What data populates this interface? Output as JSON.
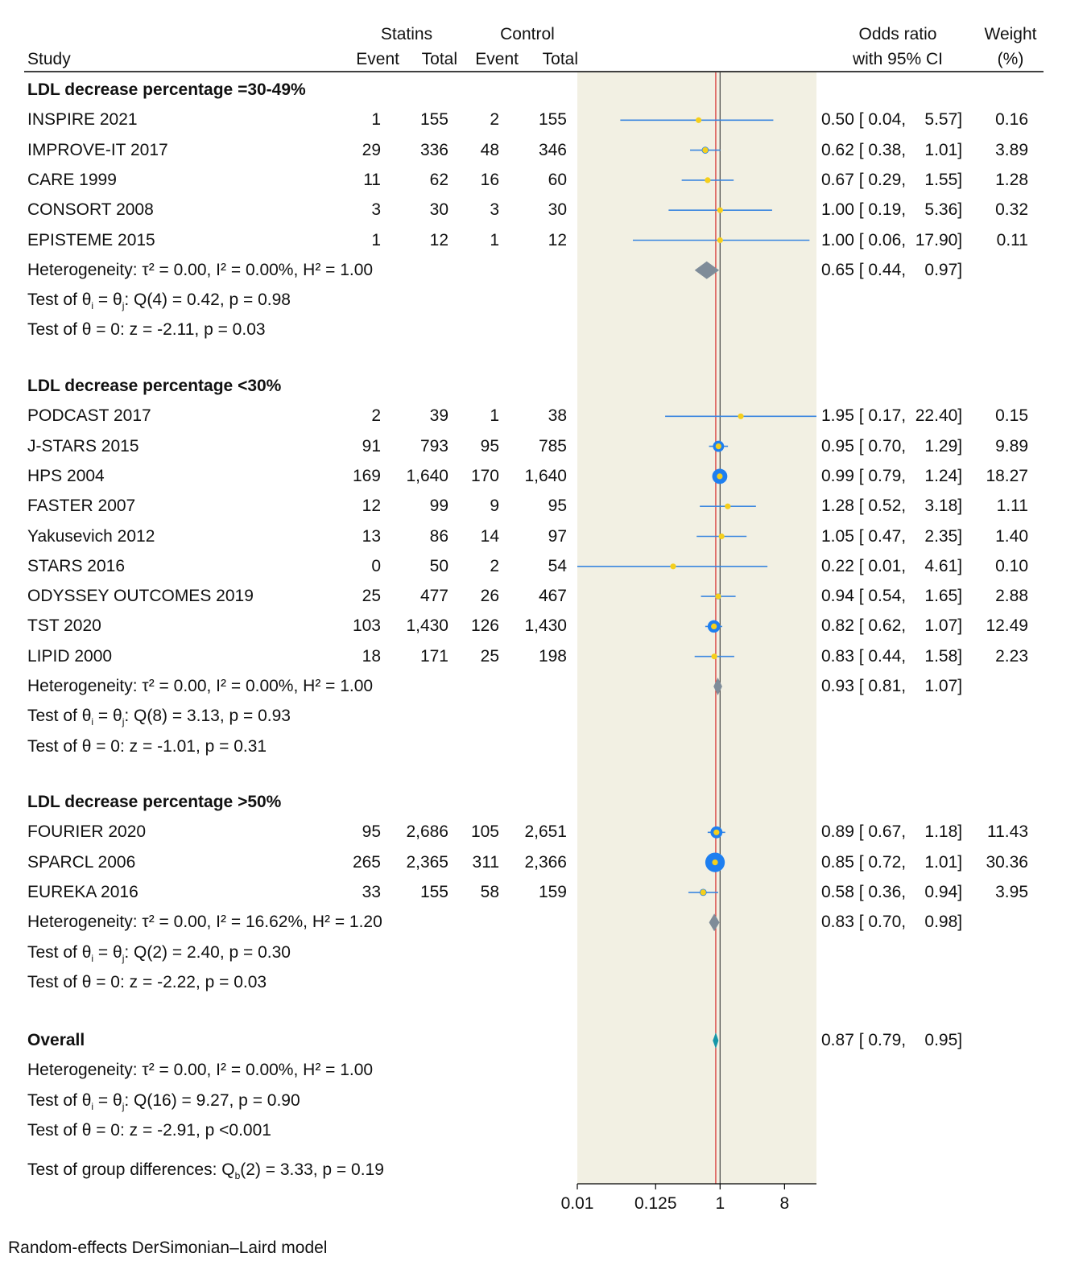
{
  "header": {
    "study": "Study",
    "statins": "Statins",
    "control": "Control",
    "event": "Event",
    "total": "Total",
    "or_line1": "Odds ratio",
    "or_line2": "with 95% CI",
    "weight_line1": "Weight",
    "weight_line2": "(%)"
  },
  "footer_note": "Random-effects DerSimonian–Laird model",
  "group_diff": {
    "pre": "Test of group differences: Q",
    "sub": "b",
    "post": "(2) = 3.33, p = 0.19"
  },
  "colors": {
    "panel": "#f2f0e3",
    "ci_line": "#3a86e0",
    "marker_ring": "#1e7ff0",
    "marker_dot": "#f5cf1c",
    "diamond": "#7f8c99",
    "overall_diamond": "#1596a8",
    "null_line": "#444444",
    "overall_line": "#d62b2b"
  },
  "chart_data": {
    "type": "forest",
    "title": "",
    "xlabel": "",
    "scale": "log2",
    "xlim": [
      0.01,
      22.4
    ],
    "x_ticks": [
      {
        "value": 0.01,
        "label": "0.01"
      },
      {
        "value": 0.125,
        "label": "0.125"
      },
      {
        "value": 1,
        "label": "1"
      },
      {
        "value": 8,
        "label": "8"
      }
    ],
    "null_value": 1,
    "overall_estimate": 0.87,
    "subgroups": [
      {
        "name": "LDL decrease percentage =30-49%",
        "studies": [
          {
            "name": "INSPIRE 2021",
            "s_event": "1",
            "s_total": "155",
            "c_event": "2",
            "c_total": "155",
            "or": 0.5,
            "lo": 0.04,
            "hi": 5.57,
            "ci_text": "0.50 [ 0.04,    5.57]",
            "weight": 0.16,
            "weight_text": "0.16"
          },
          {
            "name": "IMPROVE-IT 2017",
            "s_event": "29",
            "s_total": "336",
            "c_event": "48",
            "c_total": "346",
            "or": 0.62,
            "lo": 0.38,
            "hi": 1.01,
            "ci_text": "0.62 [ 0.38,    1.01]",
            "weight": 3.89,
            "weight_text": "3.89"
          },
          {
            "name": "CARE 1999",
            "s_event": "11",
            "s_total": "62",
            "c_event": "16",
            "c_total": "60",
            "or": 0.67,
            "lo": 0.29,
            "hi": 1.55,
            "ci_text": "0.67 [ 0.29,    1.55]",
            "weight": 1.28,
            "weight_text": "1.28"
          },
          {
            "name": "CONSORT 2008",
            "s_event": "3",
            "s_total": "30",
            "c_event": "3",
            "c_total": "30",
            "or": 1.0,
            "lo": 0.19,
            "hi": 5.36,
            "ci_text": "1.00 [ 0.19,    5.36]",
            "weight": 0.32,
            "weight_text": "0.32"
          },
          {
            "name": "EPISTEME 2015",
            "s_event": "1",
            "s_total": "12",
            "c_event": "1",
            "c_total": "12",
            "or": 1.0,
            "lo": 0.06,
            "hi": 17.9,
            "ci_text": "1.00 [ 0.06,  17.90]",
            "weight": 0.11,
            "weight_text": "0.11"
          }
        ],
        "pooled": {
          "or": 0.65,
          "lo": 0.44,
          "hi": 0.97,
          "ci_text": "0.65 [ 0.44,    0.97]"
        },
        "heterogeneity": "Heterogeneity: τ² = 0.00, I² = 0.00%, H² = 1.00",
        "q_test": {
          "pre": "Test of θ",
          "sub1": "i",
          "mid": " = θ",
          "sub2": "j",
          "post": ": Q(4) = 0.42, p = 0.98"
        },
        "z_test": "Test of θ = 0: z = -2.11, p = 0.03"
      },
      {
        "name": "LDL decrease percentage <30%",
        "studies": [
          {
            "name": "PODCAST 2017",
            "s_event": "2",
            "s_total": "39",
            "c_event": "1",
            "c_total": "38",
            "or": 1.95,
            "lo": 0.17,
            "hi": 22.4,
            "ci_text": "1.95 [ 0.17,  22.40]",
            "weight": 0.15,
            "weight_text": "0.15"
          },
          {
            "name": "J-STARS 2015",
            "s_event": "91",
            "s_total": "793",
            "c_event": "95",
            "c_total": "785",
            "or": 0.95,
            "lo": 0.7,
            "hi": 1.29,
            "ci_text": "0.95 [ 0.70,    1.29]",
            "weight": 9.89,
            "weight_text": "9.89"
          },
          {
            "name": "HPS 2004",
            "s_event": "169",
            "s_total": "1,640",
            "c_event": "170",
            "c_total": "1,640",
            "or": 0.99,
            "lo": 0.79,
            "hi": 1.24,
            "ci_text": "0.99 [ 0.79,    1.24]",
            "weight": 18.27,
            "weight_text": "18.27"
          },
          {
            "name": "FASTER 2007",
            "s_event": "12",
            "s_total": "99",
            "c_event": "9",
            "c_total": "95",
            "or": 1.28,
            "lo": 0.52,
            "hi": 3.18,
            "ci_text": "1.28 [ 0.52,    3.18]",
            "weight": 1.11,
            "weight_text": "1.11"
          },
          {
            "name": "Yakusevich 2012",
            "s_event": "13",
            "s_total": "86",
            "c_event": "14",
            "c_total": "97",
            "or": 1.05,
            "lo": 0.47,
            "hi": 2.35,
            "ci_text": "1.05 [ 0.47,    2.35]",
            "weight": 1.4,
            "weight_text": "1.40"
          },
          {
            "name": "STARS 2016",
            "s_event": "0",
            "s_total": "50",
            "c_event": "2",
            "c_total": "54",
            "or": 0.22,
            "lo": 0.01,
            "hi": 4.61,
            "ci_text": "0.22 [ 0.01,    4.61]",
            "weight": 0.1,
            "weight_text": "0.10"
          },
          {
            "name": "ODYSSEY OUTCOMES 2019",
            "s_event": "25",
            "s_total": "477",
            "c_event": "26",
            "c_total": "467",
            "or": 0.94,
            "lo": 0.54,
            "hi": 1.65,
            "ci_text": "0.94 [ 0.54,    1.65]",
            "weight": 2.88,
            "weight_text": "2.88"
          },
          {
            "name": "TST 2020",
            "s_event": "103",
            "s_total": "1,430",
            "c_event": "126",
            "c_total": "1,430",
            "or": 0.82,
            "lo": 0.62,
            "hi": 1.07,
            "ci_text": "0.82 [ 0.62,    1.07]",
            "weight": 12.49,
            "weight_text": "12.49"
          },
          {
            "name": "LIPID 2000",
            "s_event": "18",
            "s_total": "171",
            "c_event": "25",
            "c_total": "198",
            "or": 0.83,
            "lo": 0.44,
            "hi": 1.58,
            "ci_text": "0.83 [ 0.44,    1.58]",
            "weight": 2.23,
            "weight_text": "2.23"
          }
        ],
        "pooled": {
          "or": 0.93,
          "lo": 0.81,
          "hi": 1.07,
          "ci_text": "0.93 [ 0.81,    1.07]"
        },
        "heterogeneity": "Heterogeneity: τ² = 0.00, I² = 0.00%, H² = 1.00",
        "q_test": {
          "pre": "Test of θ",
          "sub1": "i",
          "mid": " = θ",
          "sub2": "j",
          "post": ": Q(8) = 3.13, p = 0.93"
        },
        "z_test": "Test of θ = 0: z = -1.01, p = 0.31"
      },
      {
        "name": "LDL decrease percentage >50%",
        "studies": [
          {
            "name": "FOURIER 2020",
            "s_event": "95",
            "s_total": "2,686",
            "c_event": "105",
            "c_total": "2,651",
            "or": 0.89,
            "lo": 0.67,
            "hi": 1.18,
            "ci_text": "0.89 [ 0.67,    1.18]",
            "weight": 11.43,
            "weight_text": "11.43"
          },
          {
            "name": "SPARCL 2006",
            "s_event": "265",
            "s_total": "2,365",
            "c_event": "311",
            "c_total": "2,366",
            "or": 0.85,
            "lo": 0.72,
            "hi": 1.01,
            "ci_text": "0.85 [ 0.72,    1.01]",
            "weight": 30.36,
            "weight_text": "30.36"
          },
          {
            "name": "EUREKA 2016",
            "s_event": "33",
            "s_total": "155",
            "c_event": "58",
            "c_total": "159",
            "or": 0.58,
            "lo": 0.36,
            "hi": 0.94,
            "ci_text": "0.58 [ 0.36,    0.94]",
            "weight": 3.95,
            "weight_text": "3.95"
          }
        ],
        "pooled": {
          "or": 0.83,
          "lo": 0.7,
          "hi": 0.98,
          "ci_text": "0.83 [ 0.70,    0.98]"
        },
        "heterogeneity": "Heterogeneity: τ² = 0.00, I² = 16.62%, H² = 1.20",
        "q_test": {
          "pre": "Test of θ",
          "sub1": "i",
          "mid": " = θ",
          "sub2": "j",
          "post": ": Q(2) = 2.40, p = 0.30"
        },
        "z_test": "Test of θ = 0: z = -2.22, p = 0.03"
      }
    ],
    "overall": {
      "name": "Overall",
      "or": 0.87,
      "lo": 0.79,
      "hi": 0.95,
      "ci_text": "0.87 [ 0.79,    0.95]",
      "heterogeneity": "Heterogeneity: τ² = 0.00, I² = 0.00%, H² = 1.00",
      "q_test": {
        "pre": "Test of θ",
        "sub1": "i",
        "mid": " = θ",
        "sub2": "j",
        "post": ": Q(16) = 9.27, p = 0.90"
      },
      "z_test": "Test of θ = 0: z = -2.91, p <0.001"
    }
  }
}
